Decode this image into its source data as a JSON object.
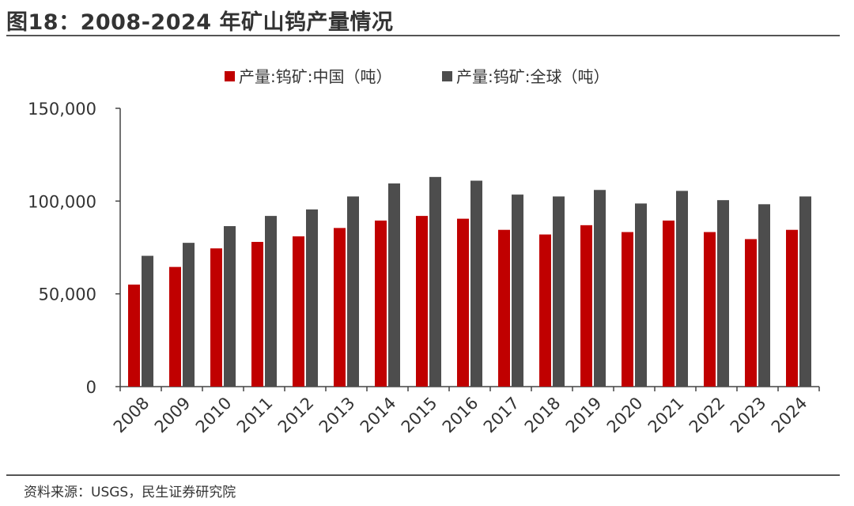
{
  "header": {
    "title": "图18：2008-2024 年矿山钨产量情况"
  },
  "footer": {
    "source": "资料来源：USGS，民生证券研究院"
  },
  "colors": {
    "china": "#c00000",
    "global": "#4d4d4d",
    "axis": "#444444"
  },
  "chart_data": {
    "type": "bar",
    "categories": [
      "2008",
      "2009",
      "2010",
      "2011",
      "2012",
      "2013",
      "2014",
      "2015",
      "2016",
      "2017",
      "2018",
      "2019",
      "2020",
      "2021",
      "2022",
      "2023",
      "2024"
    ],
    "series": [
      {
        "name": "产量:钨矿:中国（吨）",
        "values": [
          55000,
          64500,
          74500,
          78000,
          81000,
          85500,
          89500,
          92000,
          90500,
          84500,
          82000,
          87000,
          83300,
          89500,
          83300,
          79500,
          84500
        ]
      },
      {
        "name": "产量:钨矿:全球（吨）",
        "values": [
          70500,
          77500,
          86500,
          92000,
          95500,
          102500,
          109500,
          113000,
          111000,
          103500,
          102500,
          106000,
          98700,
          105500,
          100500,
          98300,
          102500
        ]
      }
    ],
    "yticks": [
      "0",
      "50,000",
      "100,000",
      "150,000"
    ],
    "ylim": [
      0,
      150000
    ],
    "legend": "top-center",
    "grid": false
  }
}
